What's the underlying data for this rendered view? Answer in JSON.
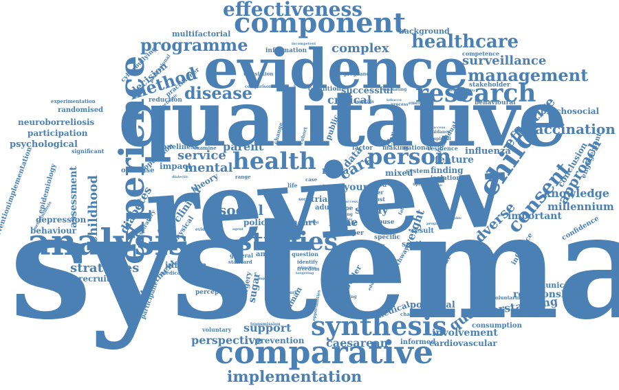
{
  "color": "#4a80b4",
  "words": [
    "systematic",
    "review",
    "qualitative",
    "evidence",
    "analysis",
    "experience",
    "comparative",
    "synthesis",
    "health",
    "child",
    "research",
    "component",
    "studies",
    "person",
    "effectiveness",
    "programme",
    "healthcare",
    "method",
    "disease",
    "consent",
    "approach",
    "management",
    "surveillance",
    "vaccination",
    "effective",
    "adverse",
    "quality",
    "implementation",
    "caesarean",
    "perspective",
    "strategies",
    "childhood",
    "complex",
    "social",
    "mental",
    "care",
    "weight",
    "lyme",
    "knowledge",
    "millennium",
    "important",
    "understanding",
    "relationship",
    "involvement",
    "support",
    "prevention",
    "cardiovascular",
    "communication",
    "consumption",
    "informed",
    "potential",
    "influenza",
    "feature",
    "finding",
    "heart",
    "policy",
    "trial",
    "adult",
    "study",
    "young",
    "sugar",
    "theory",
    "clinical",
    "physical",
    "diabetes",
    "treatment",
    "infection",
    "recruitment",
    "behaviour",
    "depression",
    "assessment",
    "psychological",
    "participation",
    "neuroborreliosis",
    "randomised",
    "experimentation",
    "epidemiology",
    "interventionimplementation",
    "decision",
    "reduction",
    "practitioner",
    "multifactorial",
    "information",
    "background",
    "competence",
    "stakeholder",
    "psychosocial",
    "conclusion",
    "engagement",
    "confidence",
    "influence",
    "service",
    "parent",
    "loneliness",
    "impact",
    "optimise",
    "population",
    "examine",
    "meta",
    "mixed",
    "system",
    "isolation",
    "chronic",
    "public",
    "critical",
    "successful",
    "condition",
    "data",
    "factor",
    "making",
    "national",
    "resilience",
    "individual",
    "aged",
    "user",
    "most",
    "paper",
    "ethic",
    "type",
    "abuse",
    "specific",
    "section",
    "result",
    "maternal",
    "pathway",
    "provider",
    "medical",
    "human",
    "surgery",
    "anxiety",
    "question",
    "general",
    "standard",
    "identify",
    "freedom",
    "participant",
    "perception",
    "medication",
    "cyberbullying",
    "professional",
    "translation",
    "comparison",
    "pregnancy",
    "evaluating",
    "behavioural",
    "voluntariness",
    "characteristic",
    "transmission",
    "framework",
    "opportunities",
    "prescribing",
    "voluntary",
    "significant",
    "metasynthesis",
    "respiratory",
    "argument",
    "educational",
    "range",
    "worker",
    "risk",
    "life",
    "case",
    "change",
    "cohort",
    "electronic",
    "hepatitis",
    "process",
    "emergence",
    "guidance",
    "empirical",
    "fathers",
    "uptake",
    "tobacco",
    "rating",
    "access",
    "living",
    "emotion",
    "social",
    "evidencia",
    "agent",
    "targeting",
    "older",
    "prognosis",
    "geographic",
    "objective",
    "complied",
    "notable",
    "success",
    "heterogeneity",
    "dialectic",
    "incompetent",
    "participation"
  ]
}
